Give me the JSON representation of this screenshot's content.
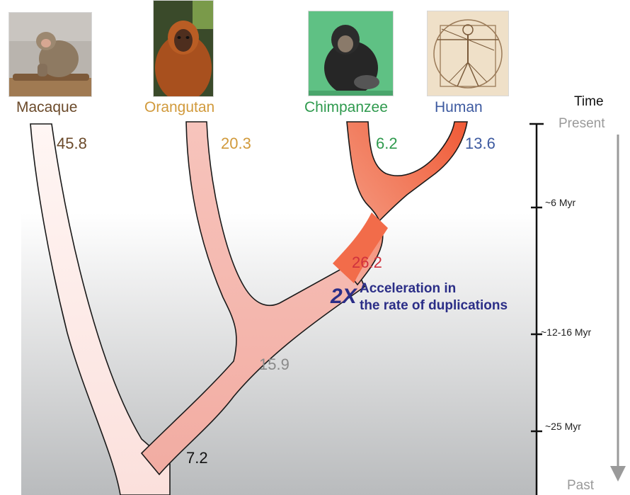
{
  "species": [
    {
      "name": "Macaque",
      "color": "#6b4a2a",
      "rate": "45.8",
      "icon": "macaque-photo"
    },
    {
      "name": "Orangutan",
      "color": "#d19a3c",
      "rate": "20.3",
      "icon": "orangutan-photo"
    },
    {
      "name": "Chimpanzee",
      "color": "#2f9a4e",
      "rate": "6.2",
      "icon": "chimpanzee-photo"
    },
    {
      "name": "Human",
      "color": "#3d5aa0",
      "rate": "13.6",
      "icon": "vitruvian-man-photo"
    }
  ],
  "internal_rates": {
    "great_ape_root": {
      "value": "7.2",
      "color": "#111111"
    },
    "orangutan_african_split": {
      "value": "15.9",
      "color": "#8a8a8a"
    },
    "african_ape_branch": {
      "value": "26.2",
      "color": "#d0313d"
    }
  },
  "acceleration": {
    "factor": "2X",
    "line1": "Acceleration in",
    "line2": "the rate of duplications",
    "color": "#2b2e87"
  },
  "timescale": {
    "title": "Time",
    "top_label": "Present",
    "bottom_label": "Past",
    "ticks": [
      "~6 Myr",
      "~12-16 Myr",
      "~25 Myr"
    ]
  }
}
